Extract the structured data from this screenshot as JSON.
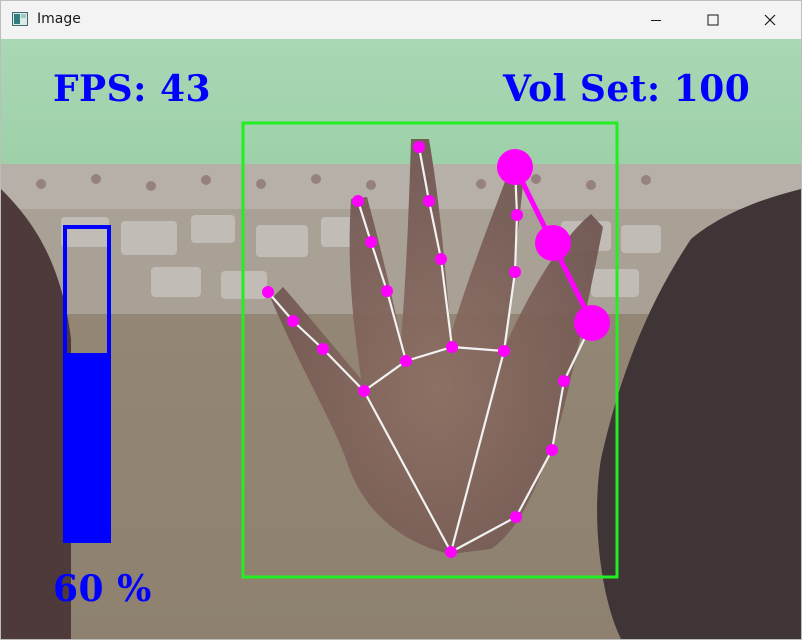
{
  "window": {
    "title": "Image",
    "controls": {
      "minimize": "minimize-icon",
      "maximize": "maximize-icon",
      "close": "close-icon"
    }
  },
  "overlay": {
    "fps_text": "FPS: 43",
    "volume_set_text": "Vol Set: 100",
    "volume_percent_text": "60 %",
    "volume_bar_level": 0.6,
    "colors": {
      "text": "#0000ff",
      "bar": "#0000ff",
      "bounding_box": "#22ee22",
      "landmark": "#ff00ff",
      "connection": "#f2f2f2",
      "pinch_line": "#ff00ff"
    }
  }
}
